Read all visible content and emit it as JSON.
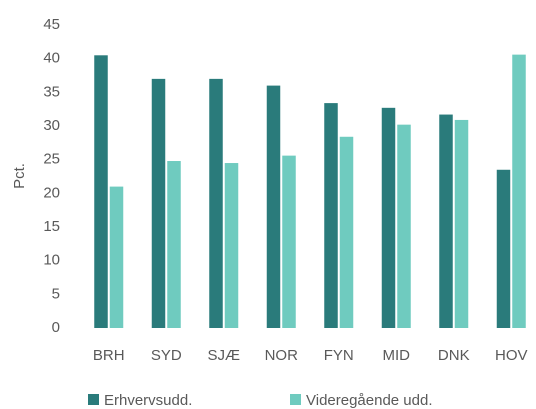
{
  "chart_data": {
    "type": "bar",
    "y_label": "Pct.",
    "categories": [
      "BRH",
      "SYD",
      "SJÆ",
      "NOR",
      "FYN",
      "MID",
      "DNK",
      "HOV"
    ],
    "series": [
      {
        "name": "Erhvervsudd.",
        "color": "#2a7b7b",
        "values": [
          40.5,
          37,
          37,
          36,
          33.4,
          32.7,
          31.7,
          23.5
        ]
      },
      {
        "name": "Videregående udd.",
        "color": "#6fcbbf",
        "values": [
          21,
          24.8,
          24.5,
          25.6,
          28.4,
          30.2,
          30.9,
          40.6
        ]
      }
    ],
    "ylim": [
      0,
      45
    ],
    "yticks": [
      0,
      5,
      10,
      15,
      20,
      25,
      30,
      35,
      40,
      45
    ],
    "grid": false,
    "legend": "bottom"
  }
}
